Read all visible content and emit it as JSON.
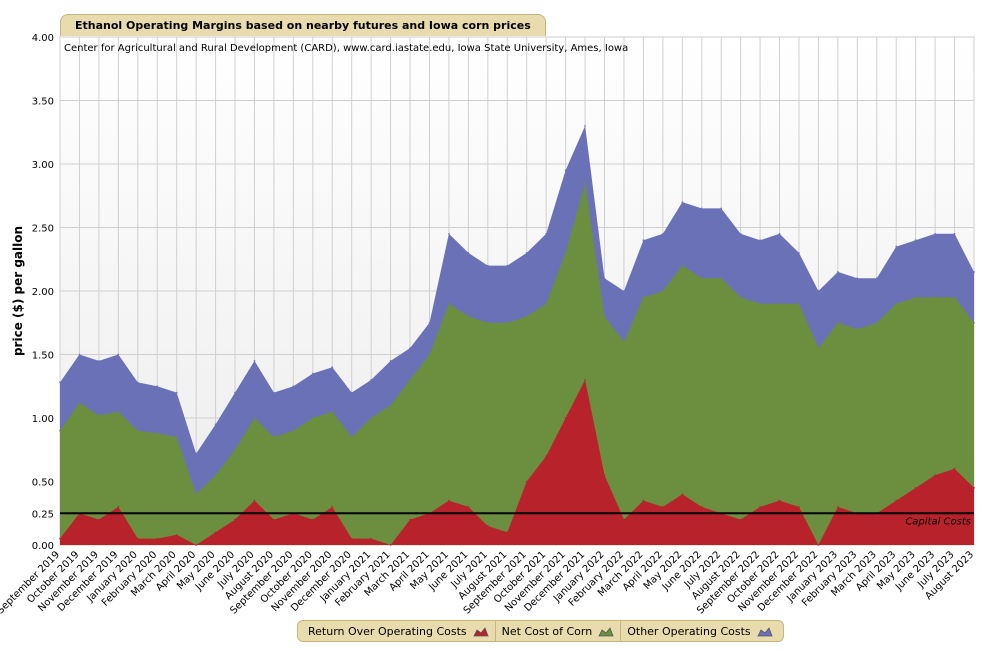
{
  "chart_data": {
    "type": "area",
    "title": "Ethanol Operating Margins based on nearby futures and Iowa corn prices",
    "subtitle": "Center for Agricultural and Rural Development (CARD), www.card.iastate.edu, Iowa State University, Ames, Iowa",
    "ylabel": "price ($) per gallon",
    "xlabel": "",
    "ylim": [
      0,
      4
    ],
    "y_ticks": [
      "0.00",
      "0.25",
      "0.50",
      "1.00",
      "1.50",
      "2.00",
      "2.50",
      "3.00",
      "3.50",
      "4.00"
    ],
    "y_tick_values": [
      0,
      0.25,
      0.5,
      1.0,
      1.5,
      2.0,
      2.5,
      3.0,
      3.5,
      4.0
    ],
    "categories": [
      "September 2019",
      "October 2019",
      "November 2019",
      "December 2019",
      "January 2020",
      "February 2020",
      "March 2020",
      "April 2020",
      "May 2020",
      "June 2020",
      "July 2020",
      "August 2020",
      "September 2020",
      "October 2020",
      "November 2020",
      "December 2020",
      "January 2021",
      "February 2021",
      "March 2021",
      "April 2021",
      "May 2021",
      "June 2021",
      "July 2021",
      "August 2021",
      "September 2021",
      "October 2021",
      "November 2021",
      "December 2021",
      "January 2022",
      "February 2022",
      "March 2022",
      "April 2022",
      "May 2022",
      "June 2022",
      "July 2022",
      "August 2022",
      "September 2022",
      "October 2022",
      "November 2022",
      "December 2022",
      "January 2023",
      "February 2023",
      "March 2023",
      "April 2023",
      "May 2023",
      "June 2023",
      "July 2023",
      "August 2023"
    ],
    "series": [
      {
        "name": "Return Over Operating Costs",
        "color": "#b8232b",
        "values": [
          0.05,
          0.25,
          0.2,
          0.3,
          0.05,
          0.05,
          0.08,
          0.0,
          0.1,
          0.2,
          0.35,
          0.2,
          0.25,
          0.2,
          0.3,
          0.05,
          0.05,
          0.0,
          0.2,
          0.25,
          0.35,
          0.3,
          0.15,
          0.1,
          0.5,
          0.7,
          1.0,
          1.3,
          0.55,
          0.2,
          0.35,
          0.3,
          0.4,
          0.3,
          0.25,
          0.2,
          0.3,
          0.35,
          0.3,
          0.0,
          0.3,
          0.25,
          0.25,
          0.35,
          0.45,
          0.55,
          0.6,
          0.45
        ]
      },
      {
        "name": "Net Cost of Corn",
        "color": "#6b8f3f",
        "values": [
          0.9,
          1.12,
          1.02,
          1.05,
          0.9,
          0.88,
          0.85,
          0.4,
          0.55,
          0.75,
          1.0,
          0.85,
          0.9,
          1.0,
          1.05,
          0.85,
          1.0,
          1.1,
          1.3,
          1.5,
          1.9,
          1.8,
          1.75,
          1.75,
          1.8,
          1.9,
          2.3,
          2.85,
          1.8,
          1.6,
          1.95,
          2.0,
          2.2,
          2.1,
          2.1,
          1.95,
          1.9,
          1.9,
          1.9,
          1.55,
          1.75,
          1.7,
          1.75,
          1.9,
          1.95,
          1.95,
          1.95,
          1.75
        ]
      },
      {
        "name": "Other Operating Costs",
        "color": "#6a71b6",
        "values": [
          1.28,
          1.5,
          1.45,
          1.5,
          1.28,
          1.25,
          1.2,
          0.72,
          0.95,
          1.2,
          1.45,
          1.2,
          1.25,
          1.35,
          1.4,
          1.2,
          1.3,
          1.45,
          1.55,
          1.75,
          2.45,
          2.3,
          2.2,
          2.2,
          2.3,
          2.45,
          2.95,
          3.3,
          2.1,
          2.0,
          2.4,
          2.45,
          2.7,
          2.65,
          2.65,
          2.45,
          2.4,
          2.45,
          2.3,
          2.0,
          2.15,
          2.1,
          2.1,
          2.35,
          2.4,
          2.45,
          2.45,
          2.15
        ]
      }
    ],
    "reference_line": {
      "label": "Capital Costs",
      "value": 0.25
    },
    "legend": [
      "Return Over Operating Costs",
      "Net Cost of Corn",
      "Other Operating Costs"
    ],
    "legend_position": "bottom",
    "grid": true
  }
}
